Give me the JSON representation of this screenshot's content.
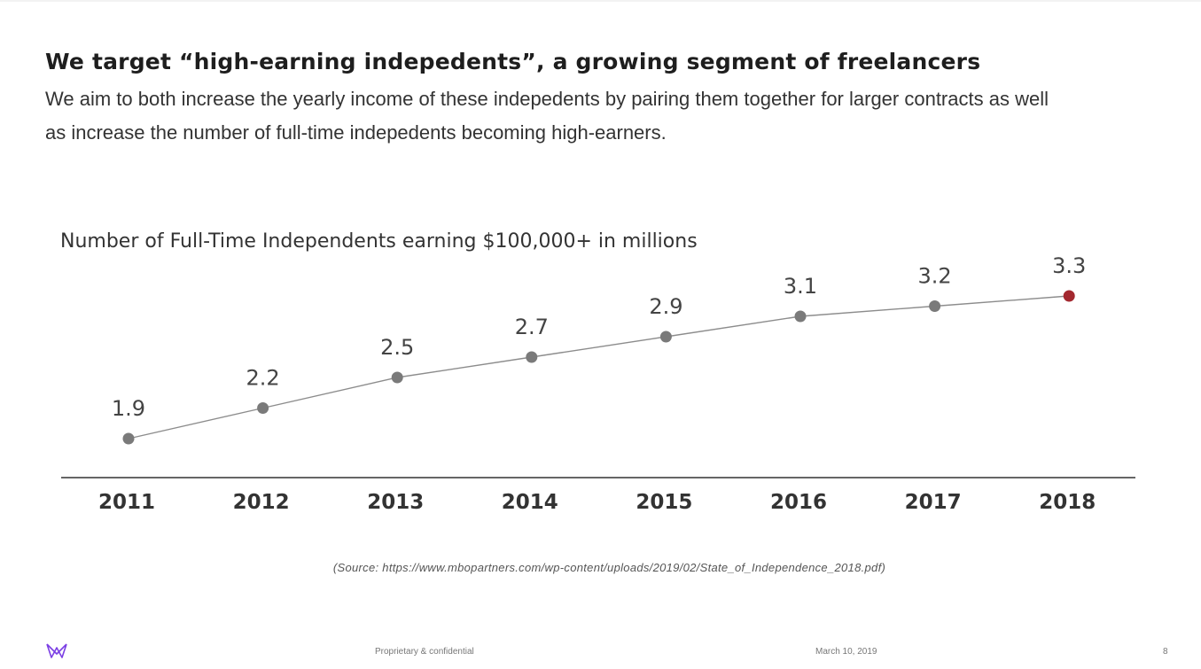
{
  "slide": {
    "title": "We target “high-earning indepedents”, a growing segment of freelancers",
    "subtitle": "We aim to both increase the yearly income of these indepedents by pairing them together for larger contracts as well as increase the number of full-time indepedents becoming high-earners."
  },
  "chart_data": {
    "type": "line",
    "title": "Number of Full-Time Independents earning $100,000+ in millions",
    "xlabel": "",
    "ylabel": "",
    "categories": [
      "2011",
      "2012",
      "2013",
      "2014",
      "2015",
      "2016",
      "2017",
      "2018"
    ],
    "series": [
      {
        "values": [
          1.9,
          2.2,
          2.5,
          2.7,
          2.9,
          3.1,
          3.2,
          3.3
        ]
      }
    ],
    "data_labels": [
      "1.9",
      "2.2",
      "2.5",
      "2.7",
      "2.9",
      "3.1",
      "3.2",
      "3.3"
    ],
    "grid": false,
    "legend": "none",
    "colors": {
      "line": "#8c8c8c",
      "point": "#7a7a7a",
      "highlight_point": "#a3282f",
      "axis": "#333333"
    }
  },
  "source": "(Source: https://www.mbopartners.com/wp-content/uploads/2019/02/State_of_Independence_2018.pdf)",
  "footer": {
    "confidential": "Proprietary & confidential",
    "date": "March 10, 2019",
    "page": "8",
    "logo_icon": "m-logo-icon",
    "logo_color": "#7b3fe4"
  }
}
